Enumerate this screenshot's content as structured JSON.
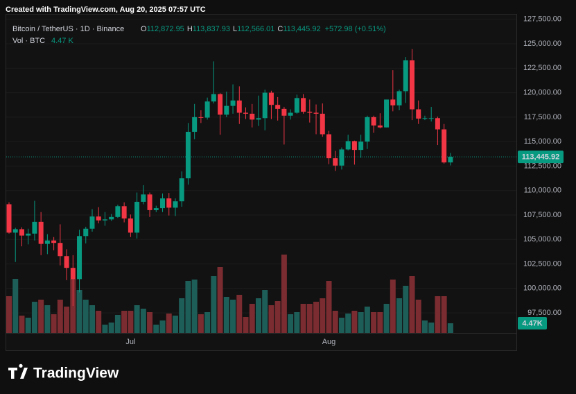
{
  "header": {
    "created": "Created with TradingView.com, Aug 20, 2025 07:57 UTC"
  },
  "legend": {
    "symbol": "Bitcoin / TetherUS · 1D · Binance",
    "ohlc": [
      {
        "key": "O",
        "label": "112,872.95"
      },
      {
        "key": "H",
        "label": "113,837.93"
      },
      {
        "key": "L",
        "label": "112,566.01"
      },
      {
        "key": "C",
        "label": "113,445.92"
      }
    ],
    "change": "+572.98 (+0.51%)",
    "vol_title": "Vol · BTC",
    "vol_value": "4.47 K"
  },
  "logo": "TradingView",
  "chart_data": {
    "type": "candlestick",
    "up_color": "#089981",
    "down_color": "#f23645",
    "up_volume_color": "#1e5e59",
    "down_volume_color": "#7a2c30",
    "categories": [
      null,
      null,
      null,
      null,
      null,
      null,
      null,
      null,
      null,
      null,
      null,
      null,
      null,
      null,
      null,
      null,
      null,
      null,
      null,
      "Jul",
      null,
      null,
      null,
      null,
      null,
      null,
      null,
      null,
      null,
      null,
      null,
      null,
      null,
      null,
      null,
      null,
      null,
      null,
      null,
      null,
      null,
      null,
      null,
      null,
      null,
      null,
      null,
      null,
      null,
      null,
      "Aug",
      null,
      null,
      null,
      null,
      null,
      null,
      null,
      null,
      null,
      null,
      null,
      null,
      null,
      null,
      null,
      null,
      null,
      null,
      null
    ],
    "open": [
      108600,
      105700,
      106050,
      105400,
      105600,
      106800,
      104550,
      104900,
      104650,
      103300,
      102100,
      100950,
      105350,
      106100,
      107350,
      106950,
      107050,
      107300,
      108400,
      107150,
      105700,
      108850,
      109600,
      108000,
      108200,
      109200,
      108250,
      108900,
      111250,
      116000,
      117500,
      117450,
      119100,
      119850,
      117750,
      118650,
      119200,
      117950,
      117850,
      117250,
      117400,
      120000,
      118750,
      118350,
      117650,
      117950,
      119450,
      118050,
      117950,
      117850,
      115750,
      113300,
      112550,
      114200,
      115050,
      114150,
      115000,
      117500,
      116650,
      116450,
      119300,
      118700,
      120150,
      123300,
      118300,
      117350,
      117400,
      117400,
      116250,
      112872.95
    ],
    "high": [
      108800,
      106200,
      106250,
      106100,
      108950,
      107800,
      105550,
      105250,
      106550,
      104000,
      103400,
      106000,
      106300,
      108100,
      108300,
      107800,
      107600,
      108550,
      108800,
      107550,
      109800,
      110550,
      109800,
      108450,
      109700,
      109750,
      109200,
      111950,
      116900,
      118850,
      118200,
      119500,
      123200,
      119950,
      120100,
      120850,
      120650,
      118500,
      118850,
      119700,
      120300,
      120200,
      119550,
      118550,
      118300,
      119800,
      119850,
      119300,
      118800,
      118900,
      116100,
      114050,
      114400,
      115700,
      115100,
      115700,
      117650,
      117650,
      117900,
      119300,
      122300,
      120300,
      123650,
      124450,
      119200,
      117650,
      118550,
      117550,
      116800,
      113837.93
    ],
    "low": [
      105600,
      102700,
      104300,
      104500,
      104900,
      103400,
      103500,
      103900,
      102350,
      100850,
      98200,
      99600,
      104600,
      105800,
      106650,
      106400,
      106900,
      107200,
      106750,
      105250,
      105100,
      108600,
      107300,
      107800,
      107800,
      107450,
      107400,
      108350,
      110600,
      115250,
      116900,
      117250,
      118900,
      115700,
      117500,
      117850,
      116800,
      117300,
      116450,
      116600,
      116150,
      117300,
      117150,
      114700,
      117250,
      117850,
      117850,
      116950,
      115750,
      115500,
      112700,
      112000,
      112150,
      114100,
      112650,
      113350,
      114250,
      115900,
      116350,
      116450,
      118100,
      118200,
      118950,
      117200,
      116800,
      117200,
      117050,
      114650,
      112750,
      112566.01
    ],
    "close": [
      105700,
      106050,
      105400,
      105600,
      106800,
      104550,
      104900,
      104650,
      103300,
      102100,
      100950,
      105350,
      106100,
      107350,
      106950,
      107050,
      107300,
      108400,
      107150,
      105700,
      108850,
      109600,
      108000,
      108200,
      109200,
      108250,
      108900,
      111250,
      116000,
      117500,
      117450,
      119100,
      119850,
      117750,
      118650,
      119200,
      117950,
      117850,
      117250,
      117400,
      120000,
      118750,
      118350,
      117650,
      117950,
      119450,
      118050,
      117950,
      117850,
      115750,
      113300,
      112550,
      114200,
      115050,
      114150,
      115000,
      117500,
      116650,
      116450,
      119300,
      118700,
      120150,
      123300,
      118300,
      117350,
      117400,
      117400,
      116250,
      112870,
      113445.92
    ],
    "volume": [
      16960,
      24960,
      8000,
      7040,
      14400,
      15360,
      12800,
      8640,
      15360,
      12160,
      24960,
      19840,
      15360,
      12800,
      10240,
      3840,
      4800,
      8320,
      10240,
      10240,
      12800,
      11200,
      9600,
      3840,
      5760,
      8960,
      8000,
      16000,
      24000,
      24640,
      8640,
      9600,
      26240,
      30400,
      16640,
      15360,
      17600,
      7360,
      13440,
      16000,
      19840,
      12800,
      14720,
      36160,
      8640,
      9600,
      13440,
      13440,
      14400,
      16000,
      24000,
      10240,
      7040,
      8960,
      10240,
      9600,
      12160,
      9600,
      9600,
      13440,
      24640,
      16000,
      21760,
      26240,
      15360,
      5760,
      4800,
      16960,
      16960,
      4470
    ],
    "last_price_label": "113,445.92",
    "last_volume_label": "4.47K",
    "ylim": [
      95450,
      128050
    ],
    "yticks": [
      {
        "value": 97500,
        "label": "97,500.00"
      },
      {
        "value": 100000,
        "label": "100,000.00"
      },
      {
        "value": 102500,
        "label": "102,500.00"
      },
      {
        "value": 105000,
        "label": "105,000.00"
      },
      {
        "value": 107500,
        "label": "107,500.00"
      },
      {
        "value": 110000,
        "label": "110,000.00"
      },
      {
        "value": 112500,
        "label": "112,500.00"
      },
      {
        "value": 115000,
        "label": "115,000.00"
      },
      {
        "value": 117500,
        "label": "117,500.00"
      },
      {
        "value": 120000,
        "label": "120,000.00"
      },
      {
        "value": 122500,
        "label": "122,500.00"
      },
      {
        "value": 125000,
        "label": "125,000.00"
      },
      {
        "value": 127500,
        "label": "127,500.00"
      }
    ],
    "grid": true
  }
}
